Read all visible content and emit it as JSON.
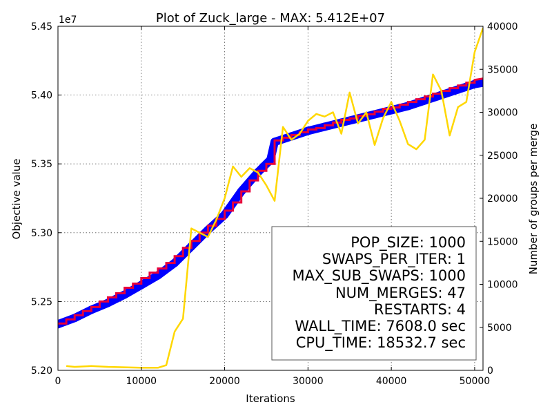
{
  "chart_data": {
    "type": "line",
    "title": "Plot of Zuck_large - MAX: 5.412E+07",
    "xlabel": "Iterations",
    "ylabel": "Objective value",
    "y2label": "Number of groups per merge",
    "y_offset_label": "1e7",
    "xlim": [
      0,
      51000
    ],
    "ylim": [
      52000000,
      54500000
    ],
    "y2lim": [
      0,
      40000
    ],
    "x_ticks": [
      0,
      10000,
      20000,
      30000,
      40000,
      50000
    ],
    "x_tick_labels": [
      "0",
      "10000",
      "20000",
      "30000",
      "40000",
      "50000"
    ],
    "y_ticks": [
      52000000,
      52500000,
      53000000,
      53500000,
      54000000,
      54500000
    ],
    "y_tick_labels": [
      "5.20",
      "5.25",
      "5.30",
      "5.35",
      "5.40",
      "5.45"
    ],
    "y2_ticks": [
      0,
      5000,
      10000,
      15000,
      20000,
      25000,
      30000,
      35000,
      40000
    ],
    "y2_tick_labels": [
      "0",
      "5000",
      "10000",
      "15000",
      "20000",
      "25000",
      "30000",
      "35000",
      "40000"
    ],
    "grid": true,
    "series": [
      {
        "axis": "left",
        "color": "#0000ff",
        "style": "band",
        "x": [
          0,
          2000,
          4000,
          6000,
          8000,
          10000,
          12000,
          14000,
          16000,
          18000,
          20000,
          22000,
          24000,
          25500,
          26000,
          28000,
          30000,
          32000,
          34000,
          36000,
          38000,
          40000,
          42000,
          44000,
          46000,
          48000,
          50000,
          51000
        ],
        "values": [
          52335000,
          52380000,
          52440000,
          52490000,
          52550000,
          52620000,
          52690000,
          52780000,
          52900000,
          53020000,
          53130000,
          53300000,
          53440000,
          53530000,
          53660000,
          53700000,
          53740000,
          53770000,
          53800000,
          53830000,
          53860000,
          53890000,
          53920000,
          53960000,
          54000000,
          54040000,
          54080000,
          54090000
        ]
      },
      {
        "axis": "left",
        "color": "#e8003a",
        "style": "step",
        "x": [
          0,
          1000,
          1000,
          2000,
          2000,
          3000,
          3000,
          4000,
          4000,
          5000,
          5000,
          6000,
          6000,
          7000,
          7000,
          8000,
          8000,
          9000,
          9000,
          10000,
          10000,
          11000,
          11000,
          12000,
          12000,
          13000,
          13000,
          14000,
          14000,
          15000,
          15000,
          16000,
          16000,
          17000,
          17000,
          18000,
          18000,
          19000,
          19000,
          20000,
          20000,
          21000,
          21000,
          22000,
          22000,
          23000,
          23000,
          24000,
          24000,
          25000,
          25000,
          26000,
          26000,
          27000,
          27000,
          28000,
          28000,
          29000,
          29000,
          30000,
          30000,
          31000,
          31000,
          32000,
          32000,
          33000,
          33000,
          34000,
          34000,
          35000,
          35000,
          36000,
          36000,
          37000,
          37000,
          38000,
          38000,
          39000,
          39000,
          40000,
          40000,
          41000,
          41000,
          42000,
          42000,
          43000,
          43000,
          44000,
          44000,
          45000,
          45000,
          46000,
          46000,
          47000,
          47000,
          48000,
          48000,
          49000,
          49000,
          50000,
          50000,
          51000
        ],
        "values": [
          52340000,
          52340000,
          52370000,
          52370000,
          52400000,
          52400000,
          52430000,
          52430000,
          52460000,
          52460000,
          52500000,
          52500000,
          52530000,
          52530000,
          52560000,
          52560000,
          52600000,
          52600000,
          52630000,
          52630000,
          52670000,
          52670000,
          52710000,
          52710000,
          52740000,
          52740000,
          52780000,
          52780000,
          52830000,
          52830000,
          52890000,
          52890000,
          52940000,
          52940000,
          53000000,
          53000000,
          53050000,
          53050000,
          53100000,
          53100000,
          53160000,
          53160000,
          53220000,
          53220000,
          53300000,
          53300000,
          53380000,
          53380000,
          53450000,
          53450000,
          53500000,
          53500000,
          53670000,
          53670000,
          53690000,
          53690000,
          53710000,
          53710000,
          53730000,
          53730000,
          53750000,
          53750000,
          53760000,
          53760000,
          53780000,
          53780000,
          53800000,
          53800000,
          53820000,
          53820000,
          53830000,
          53830000,
          53850000,
          53850000,
          53860000,
          53860000,
          53880000,
          53880000,
          53900000,
          53900000,
          53910000,
          53910000,
          53930000,
          53930000,
          53950000,
          53950000,
          53970000,
          53970000,
          53990000,
          53990000,
          54010000,
          54010000,
          54030000,
          54030000,
          54050000,
          54050000,
          54070000,
          54070000,
          54090000,
          54090000,
          54110000,
          54120000
        ]
      },
      {
        "axis": "right",
        "color": "#ffd700",
        "style": "line",
        "x": [
          1000,
          2000,
          4000,
          6000,
          8000,
          10000,
          12000,
          13000,
          14000,
          15000,
          16000,
          17000,
          18000,
          19000,
          20000,
          21000,
          22000,
          23000,
          24000,
          25000,
          26000,
          27000,
          28000,
          29000,
          30000,
          31000,
          32000,
          33000,
          34000,
          35000,
          36000,
          37000,
          38000,
          39000,
          40000,
          41000,
          42000,
          43000,
          44000,
          45000,
          46000,
          47000,
          48000,
          49000,
          50000,
          51000
        ],
        "values": [
          500,
          400,
          500,
          400,
          350,
          300,
          300,
          600,
          4500,
          6000,
          16500,
          16000,
          15500,
          17500,
          20000,
          23700,
          22500,
          23500,
          23000,
          21500,
          19700,
          28300,
          26800,
          27500,
          29000,
          29800,
          29500,
          30000,
          27500,
          32300,
          28700,
          30000,
          26200,
          29300,
          31200,
          29000,
          26300,
          25700,
          26800,
          34400,
          32500,
          27300,
          30600,
          31200,
          37000,
          39800
        ]
      }
    ],
    "annotation": [
      "POP_SIZE: 1000",
      "SWAPS_PER_ITER: 1",
      "MAX_SUB_SWAPS: 1000",
      "NUM_MERGES: 47",
      "RESTARTS: 4",
      "WALL_TIME: 7608.0 sec",
      "CPU_TIME: 18532.7 sec"
    ]
  }
}
